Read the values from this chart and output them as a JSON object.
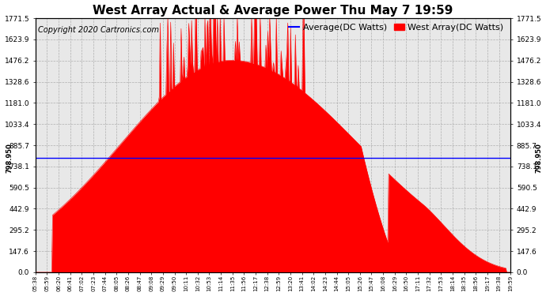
{
  "title": "West Array Actual & Average Power Thu May 7 19:59",
  "copyright": "Copyright 2020 Cartronics.com",
  "average_label": "Average(DC Watts)",
  "west_label": "West Array(DC Watts)",
  "average_color": "blue",
  "west_color": "red",
  "average_value": 798.95,
  "ylim": [
    0,
    1771.5
  ],
  "yticks": [
    0.0,
    147.6,
    295.2,
    442.9,
    590.5,
    738.1,
    885.7,
    1033.4,
    1181.0,
    1328.6,
    1476.2,
    1623.9,
    1771.5
  ],
  "yticklabels": [
    "0.0",
    "147.6",
    "295.2",
    "442.9",
    "590.5",
    "738.1",
    "885.7",
    "1033.4",
    "1181.0",
    "1328.6",
    "1476.2",
    "1623.9",
    "1771.5"
  ],
  "avg_side_label": "798.950",
  "plot_bg": "#e8e8e8",
  "title_fontsize": 11,
  "copyright_fontsize": 7,
  "legend_fontsize": 8,
  "time_labels": [
    "05:38",
    "05:59",
    "06:20",
    "06:41",
    "07:02",
    "07:23",
    "07:44",
    "08:05",
    "08:26",
    "08:47",
    "09:08",
    "09:29",
    "09:50",
    "10:11",
    "10:32",
    "10:53",
    "11:14",
    "11:35",
    "11:56",
    "12:17",
    "12:38",
    "12:59",
    "13:20",
    "13:41",
    "14:02",
    "14:23",
    "14:44",
    "15:05",
    "15:26",
    "15:47",
    "16:08",
    "16:29",
    "16:50",
    "17:11",
    "17:32",
    "17:53",
    "18:14",
    "18:35",
    "18:56",
    "19:17",
    "19:38",
    "19:59"
  ]
}
